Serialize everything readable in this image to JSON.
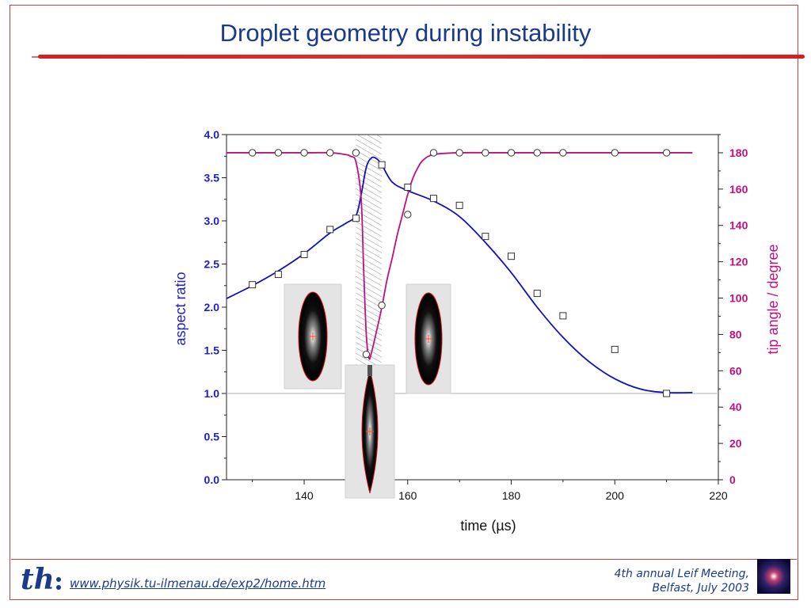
{
  "slide": {
    "title": "Droplet geometry during instability",
    "footer_url": "www.physik.tu-ilmenau.de/exp2/home.htm",
    "footer_event_line1": "4th annual Leif Meeting,",
    "footer_event_line2": "Belfast, July 2003",
    "logo_text": "th"
  },
  "colors": {
    "title": "#1a3a8a",
    "underline": "#d42020",
    "aspect_axis": "#2020c0",
    "angle_axis": "#c01080",
    "blue_curve": "#1010c0",
    "magenta_curve": "#c01080"
  },
  "chart_data": {
    "type": "scatter",
    "xlabel": "time (µs)",
    "ylabel_left": "aspect ratio",
    "ylabel_right": "tip angle / degree",
    "xlim": [
      125,
      220
    ],
    "ylim_left": [
      0.0,
      4.0
    ],
    "ylim_right": [
      0,
      190
    ],
    "x_ticks": [
      "140",
      "160",
      "180",
      "200",
      "220"
    ],
    "y_left_ticks": [
      "0.0",
      "0.5",
      "1.0",
      "1.5",
      "2.0",
      "2.5",
      "3.0",
      "3.5",
      "4.0"
    ],
    "y_right_ticks": [
      "0",
      "20",
      "40",
      "60",
      "80",
      "100",
      "120",
      "140",
      "160",
      "180"
    ],
    "reference_line_y": 1.0,
    "hatched_band_x": [
      150,
      155
    ],
    "series": [
      {
        "axis": "left",
        "marker": "square",
        "x": [
          130,
          135,
          140,
          145,
          150,
          155,
          160,
          165,
          170,
          175,
          180,
          185,
          190,
          200,
          210
        ],
        "values": [
          2.26,
          2.38,
          2.61,
          2.9,
          3.03,
          3.65,
          3.39,
          3.26,
          3.18,
          2.82,
          2.59,
          2.16,
          1.9,
          1.51,
          1.0
        ]
      },
      {
        "axis": "right",
        "marker": "circle",
        "x": [
          130,
          135,
          140,
          145,
          150,
          152,
          155,
          160,
          165,
          170,
          175,
          180,
          185,
          190,
          200,
          210
        ],
        "values": [
          180,
          180,
          180,
          180,
          180,
          69,
          96,
          146,
          180,
          180,
          180,
          180,
          180,
          180,
          180,
          180
        ]
      }
    ],
    "fit_curves": [
      {
        "axis": "left",
        "x": [
          125,
          130,
          135,
          140,
          145,
          148,
          150,
          151,
          152,
          153,
          154,
          155,
          157,
          160,
          165,
          170,
          175,
          180,
          185,
          190,
          195,
          200,
          205,
          210,
          215
        ],
        "values": [
          2.1,
          2.25,
          2.42,
          2.62,
          2.86,
          2.97,
          3.06,
          3.3,
          3.62,
          3.73,
          3.72,
          3.65,
          3.45,
          3.35,
          3.23,
          3.05,
          2.75,
          2.4,
          2.0,
          1.65,
          1.37,
          1.17,
          1.05,
          1.01,
          1.01
        ]
      },
      {
        "axis": "right",
        "x": [
          125,
          140,
          145,
          148,
          149,
          150,
          151,
          151.5,
          152,
          152.5,
          153,
          154,
          155,
          156,
          157,
          158,
          159,
          160,
          161,
          162,
          163,
          165,
          170,
          180,
          215
        ],
        "values": [
          180,
          180,
          180,
          179,
          178,
          175,
          155,
          115,
          80,
          67,
          70,
          82,
          95,
          110,
          122,
          135,
          146,
          157,
          166,
          172,
          176,
          179,
          180,
          180,
          180
        ]
      }
    ]
  }
}
